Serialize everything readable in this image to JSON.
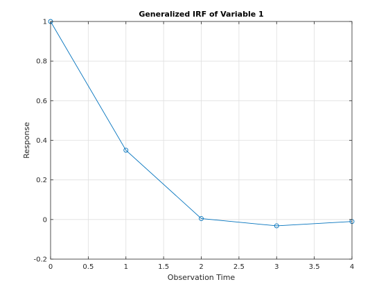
{
  "chart_data": {
    "type": "line",
    "title": "Generalized IRF of Variable 1",
    "xlabel": "Observation Time",
    "ylabel": "Response",
    "xlim": [
      0,
      4
    ],
    "ylim": [
      -0.2,
      1
    ],
    "xticks": [
      0,
      0.5,
      1,
      1.5,
      2,
      2.5,
      3,
      3.5,
      4
    ],
    "xtick_labels": [
      "0",
      "0.5",
      "1",
      "1.5",
      "2",
      "2.5",
      "3",
      "3.5",
      "4"
    ],
    "yticks": [
      -0.2,
      0,
      0.2,
      0.4,
      0.6,
      0.8,
      1
    ],
    "ytick_labels": [
      "-0.2",
      "0",
      "0.2",
      "0.4",
      "0.6",
      "0.8",
      "1"
    ],
    "grid": true,
    "marker": "circle",
    "series": [
      {
        "x": [
          0,
          1,
          2,
          3,
          4
        ],
        "values": [
          1.0,
          0.35,
          0.005,
          -0.032,
          -0.01
        ],
        "color": "#0072BD"
      }
    ]
  }
}
